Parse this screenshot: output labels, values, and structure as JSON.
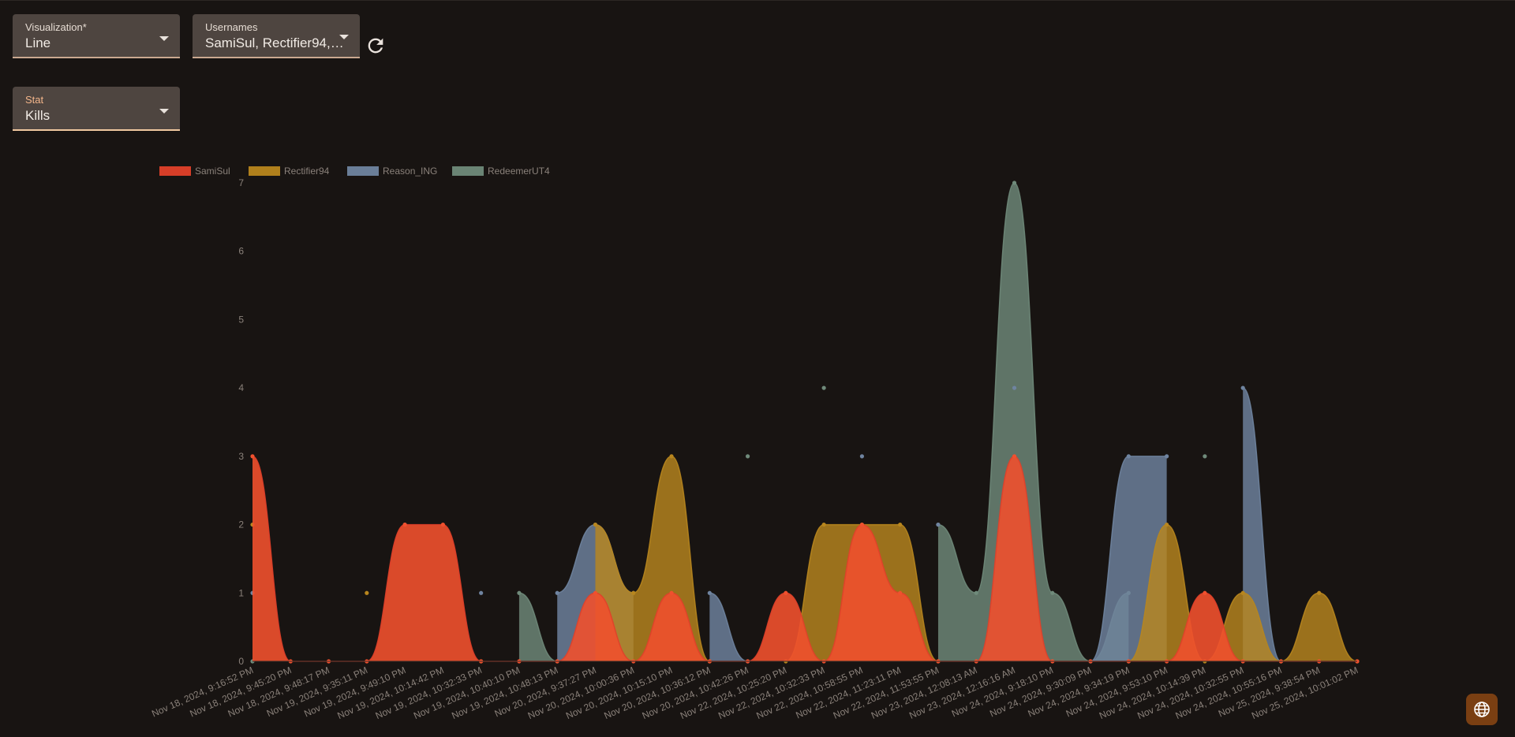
{
  "controls": {
    "visualization": {
      "label": "Visualization*",
      "value": "Line"
    },
    "usernames": {
      "label": "Usernames",
      "value": "SamiSul, Rectifier94,…"
    },
    "stat": {
      "label": "Stat",
      "value": "Kills"
    }
  },
  "icons": {
    "refresh": "refresh-icon",
    "language": "globe-icon"
  },
  "chart_data": {
    "type": "area",
    "legend_position": "top-left",
    "grid": false,
    "ylim": [
      0,
      7
    ],
    "y_ticks": [
      "0",
      "1",
      "2",
      "3",
      "4",
      "5",
      "6",
      "7"
    ],
    "categories": [
      "Nov 18, 2024, 9:16:52 PM",
      "Nov 18, 2024, 9:45:20 PM",
      "Nov 18, 2024, 9:48:17 PM",
      "Nov 19, 2024, 9:35:11 PM",
      "Nov 19, 2024, 9:49:10 PM",
      "Nov 19, 2024, 10:14:42 PM",
      "Nov 19, 2024, 10:32:33 PM",
      "Nov 19, 2024, 10:40:10 PM",
      "Nov 19, 2024, 10:48:13 PM",
      "Nov 20, 2024, 9:37:27 PM",
      "Nov 20, 2024, 10:00:36 PM",
      "Nov 20, 2024, 10:15:10 PM",
      "Nov 20, 2024, 10:36:12 PM",
      "Nov 20, 2024, 10:42:26 PM",
      "Nov 22, 2024, 10:25:20 PM",
      "Nov 22, 2024, 10:32:33 PM",
      "Nov 22, 2024, 10:58:55 PM",
      "Nov 22, 2024, 11:23:11 PM",
      "Nov 22, 2024, 11:53:55 PM",
      "Nov 23, 2024, 12:08:13 AM",
      "Nov 23, 2024, 12:16:16 AM",
      "Nov 24, 2024, 9:18:10 PM",
      "Nov 24, 2024, 9:30:09 PM",
      "Nov 24, 2024, 9:34:19 PM",
      "Nov 24, 2024, 9:53:10 PM",
      "Nov 24, 2024, 10:14:39 PM",
      "Nov 24, 2024, 10:32:55 PM",
      "Nov 24, 2024, 10:55:16 PM",
      "Nov 25, 2024, 9:38:54 PM",
      "Nov 25, 2024, 10:01:02 PM"
    ],
    "series": [
      {
        "name": "RedeemerUT4",
        "color": "#6f8a7a",
        "values": [
          0,
          null,
          null,
          null,
          2,
          null,
          null,
          1,
          0,
          null,
          null,
          null,
          null,
          3,
          null,
          4,
          null,
          null,
          2,
          1,
          7,
          1,
          0,
          1,
          null,
          3,
          null,
          null,
          null,
          null
        ]
      },
      {
        "name": "Reason_ING",
        "color": "#6f84a0",
        "values": [
          1,
          null,
          null,
          null,
          null,
          null,
          1,
          null,
          1,
          2,
          1,
          null,
          1,
          0,
          null,
          null,
          3,
          null,
          2,
          null,
          4,
          null,
          0,
          3,
          3,
          null,
          4,
          0,
          null,
          null
        ]
      },
      {
        "name": "Rectifier94",
        "color": "#b8861e",
        "values": [
          2,
          null,
          null,
          1,
          null,
          null,
          0,
          null,
          null,
          2,
          1,
          3,
          0,
          null,
          0,
          2,
          2,
          2,
          0,
          null,
          null,
          null,
          null,
          0,
          2,
          0,
          1,
          0,
          1,
          0
        ]
      },
      {
        "name": "SamiSul",
        "color": "#e0402a",
        "values": [
          3,
          0,
          0,
          0,
          2,
          2,
          0,
          0,
          0,
          1,
          0,
          1,
          0,
          0,
          1,
          0,
          2,
          1,
          0,
          0,
          3,
          0,
          0,
          0,
          0,
          1,
          0,
          0,
          0,
          0
        ]
      }
    ]
  }
}
